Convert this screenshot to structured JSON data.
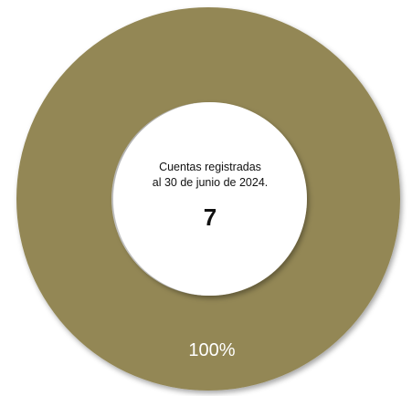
{
  "chart_data": {
    "type": "pie",
    "style": "donut",
    "categories": [
      ""
    ],
    "values": [
      100
    ],
    "data_labels": [
      "100%"
    ],
    "colors": [
      "#938755"
    ],
    "center_text": {
      "line1": "Cuentas registradas",
      "line2": "al 30 de junio de 2024.",
      "value": "7"
    },
    "legend": "none"
  }
}
